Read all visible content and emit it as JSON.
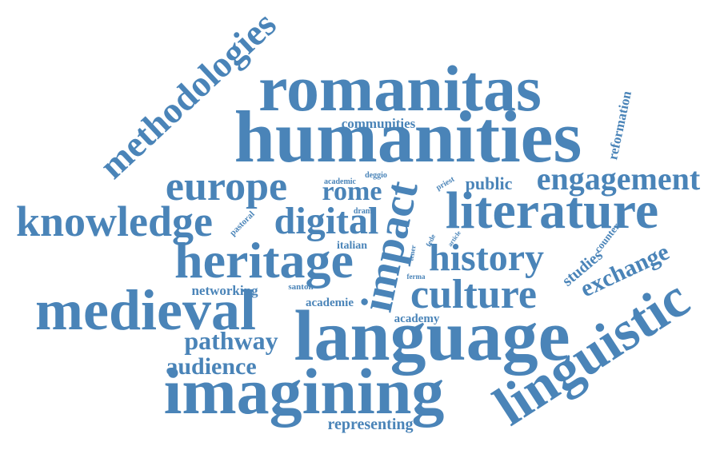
{
  "word_color": "#4a84b8",
  "background_color": "#ffffff",
  "words": {
    "methodologies": "methodologies",
    "romanitas": "romanitas",
    "communities": "communities",
    "humanities": "humanities",
    "reformation": "reformation",
    "europe": "europe",
    "academic": "academic",
    "deggio": "deggio",
    "rome": "rome",
    "public": "public",
    "priest": "priest",
    "engagement": "engagement",
    "knowledge": "knowledge",
    "pastoral": "pastoral",
    "drama": "drama",
    "digital": "digital",
    "impact": "impact",
    "literature": "literature",
    "italian": "italian",
    "fede": "fede",
    "article": "article",
    "counter": "counter",
    "heritage": "heritage",
    "tener": "tener",
    "history": "history",
    "studies": "studies",
    "exchange": "exchange",
    "networking": "networking",
    "santon": "santon",
    "ferma": "ferma",
    "culture": "culture",
    "academie": "academie",
    "medieval": "medieval",
    "academy": "academy",
    "linguistic": "linguistic",
    "pathway": "pathway",
    "language": "language",
    "audience": "audience",
    "imagining": "imagining",
    "representing": "representing"
  }
}
